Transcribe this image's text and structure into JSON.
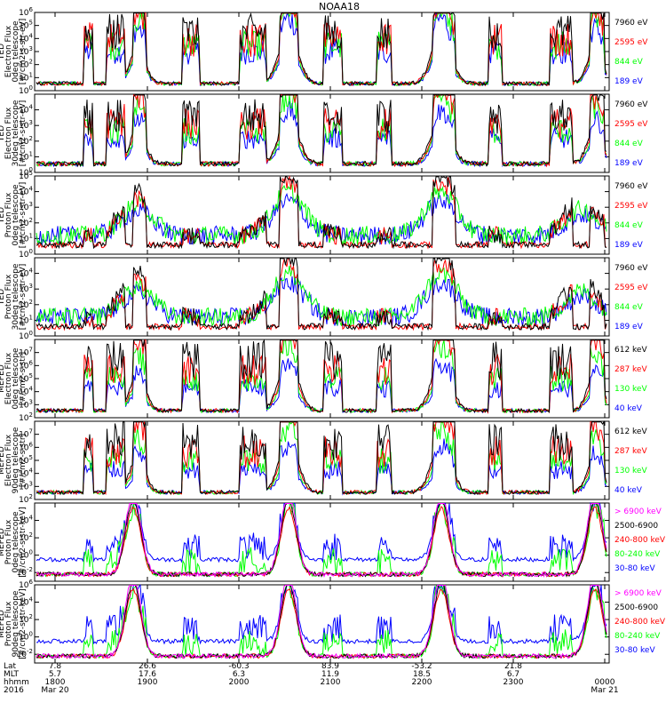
{
  "title": "NOAA18",
  "colors": {
    "black": "#000000",
    "red": "#ff0000",
    "green": "#00ff00",
    "blue": "#0000ff",
    "magenta": "#ff00ff"
  },
  "footer": {
    "row_labels": [
      "Lat",
      "MLT",
      "hhmm",
      "2016"
    ],
    "lat": [
      "7.8",
      "26.6",
      "-60.3",
      "83.9",
      "-53.2",
      "21.8"
    ],
    "mlt": [
      "5.7",
      "17.6",
      "6.3",
      "11.9",
      "18.5",
      "6.7"
    ],
    "hhmm": [
      "1800",
      "1900",
      "2000",
      "2100",
      "2200",
      "2300",
      "0000"
    ],
    "date_start": "Mar 20",
    "date_end": "Mar 21"
  },
  "chart_data": [
    {
      "type": "line",
      "panel": "TED Electron Flux 0deg telescope",
      "ylabel": [
        "TED",
        "Electron Flux",
        "0deg telescope",
        "[#/cm2-s-str-eV]"
      ],
      "ylim_log10": [
        0,
        6
      ],
      "y_ticks_exp": [
        0,
        1,
        2,
        3,
        4,
        5,
        6
      ],
      "yscale": "log",
      "x": [
        "1800",
        "1900",
        "2000",
        "2100",
        "2200",
        "2300",
        "0000"
      ],
      "series": [
        {
          "name": "7960 eV",
          "color": "#000000"
        },
        {
          "name": "2595 eV",
          "color": "#ff0000"
        },
        {
          "name": "844 eV",
          "color": "#00ff00"
        },
        {
          "name": "189 eV",
          "color": "#0000ff"
        }
      ]
    },
    {
      "type": "line",
      "panel": "TED Electron Flux 30deg telescope",
      "ylabel": [
        "TED",
        "Electron Flux",
        "30deg telescope",
        "[#/cm2-s-str-eV]"
      ],
      "ylim_log10": [
        0,
        5
      ],
      "y_ticks_exp": [
        0,
        1,
        2,
        3,
        4
      ],
      "yscale": "log",
      "x": [
        "1800",
        "1900",
        "2000",
        "2100",
        "2200",
        "2300",
        "0000"
      ],
      "series": [
        {
          "name": "7960 eV",
          "color": "#000000"
        },
        {
          "name": "2595 eV",
          "color": "#ff0000"
        },
        {
          "name": "844 eV",
          "color": "#00ff00"
        },
        {
          "name": "189 eV",
          "color": "#0000ff"
        }
      ]
    },
    {
      "type": "line",
      "panel": "TED Proton Flux 0deg telescope",
      "ylabel": [
        "TED",
        "Proton Flux",
        "0deg telescope",
        "[#/cm2-s-str-eV]"
      ],
      "ylim_log10": [
        0,
        5
      ],
      "y_ticks_exp": [
        0,
        1,
        2,
        3,
        4,
        5
      ],
      "yscale": "log",
      "x": [
        "1800",
        "1900",
        "2000",
        "2100",
        "2200",
        "2300",
        "0000"
      ],
      "series": [
        {
          "name": "7960 eV",
          "color": "#000000"
        },
        {
          "name": "2595 eV",
          "color": "#ff0000"
        },
        {
          "name": "844 eV",
          "color": "#00ff00"
        },
        {
          "name": "189 eV",
          "color": "#0000ff"
        }
      ]
    },
    {
      "type": "line",
      "panel": "TED Proton Flux 30deg telescope",
      "ylabel": [
        "TED",
        "Proton Flux",
        "30deg telescope",
        "[#/cm2-s-str-eV]"
      ],
      "ylim_log10": [
        0,
        5
      ],
      "y_ticks_exp": [
        0,
        1,
        2,
        3,
        4
      ],
      "yscale": "log",
      "x": [
        "1800",
        "1900",
        "2000",
        "2100",
        "2200",
        "2300",
        "0000"
      ],
      "series": [
        {
          "name": "7960 eV",
          "color": "#000000"
        },
        {
          "name": "2595 eV",
          "color": "#ff0000"
        },
        {
          "name": "844 eV",
          "color": "#00ff00"
        },
        {
          "name": "189 eV",
          "color": "#0000ff"
        }
      ]
    },
    {
      "type": "line",
      "panel": "MEPED Electron Flux 0deg telescope",
      "ylabel": [
        "MEPED",
        "Electron Flux",
        "0deg telescope",
        "[#/cm2-s-str]"
      ],
      "ylim_log10": [
        2,
        8
      ],
      "y_ticks_exp": [
        2,
        3,
        4,
        5,
        6,
        7
      ],
      "yscale": "log",
      "x": [
        "1800",
        "1900",
        "2000",
        "2100",
        "2200",
        "2300",
        "0000"
      ],
      "series": [
        {
          "name": "612 keV",
          "color": "#000000"
        },
        {
          "name": "287 keV",
          "color": "#ff0000"
        },
        {
          "name": "130 keV",
          "color": "#00ff00"
        },
        {
          "name": "40 keV",
          "color": "#0000ff"
        }
      ]
    },
    {
      "type": "line",
      "panel": "MEPED Electron Flux 90deg telescope",
      "ylabel": [
        "MEPED",
        "Electron Flux",
        "90deg telescope",
        "[#/cm2-s-str]"
      ],
      "ylim_log10": [
        2,
        8
      ],
      "y_ticks_exp": [
        2,
        3,
        4,
        5,
        6,
        7
      ],
      "yscale": "log",
      "x": [
        "1800",
        "1900",
        "2000",
        "2100",
        "2200",
        "2300",
        "0000"
      ],
      "series": [
        {
          "name": "612 keV",
          "color": "#000000"
        },
        {
          "name": "287 keV",
          "color": "#ff0000"
        },
        {
          "name": "130 keV",
          "color": "#00ff00"
        },
        {
          "name": "40 keV",
          "color": "#0000ff"
        }
      ]
    },
    {
      "type": "line",
      "panel": "MEPED Proton Flux 0deg telescope",
      "ylabel": [
        "MEPED",
        "Proton Flux",
        "0deg telescope",
        "[#/cm2-s-str-keV]"
      ],
      "ylim_log10": [
        -3,
        6
      ],
      "y_ticks_exp": [
        -2,
        0,
        2,
        4
      ],
      "yscale": "log",
      "x": [
        "1800",
        "1900",
        "2000",
        "2100",
        "2200",
        "2300",
        "0000"
      ],
      "series": [
        {
          "name": "> 6900 keV",
          "color": "#ff00ff"
        },
        {
          "name": "2500-6900",
          "color": "#000000"
        },
        {
          "name": "240-800 keV",
          "color": "#ff0000"
        },
        {
          "name": "80-240 keV",
          "color": "#00ff00"
        },
        {
          "name": "30-80 keV",
          "color": "#0000ff"
        }
      ]
    },
    {
      "type": "line",
      "panel": "MEPED Proton Flux 90deg telescope",
      "ylabel": [
        "MEPED",
        "Proton Flux",
        "90deg telescope",
        "[#/cm2-s-str-keV]"
      ],
      "ylim_log10": [
        -3,
        6
      ],
      "y_ticks_exp": [
        -2,
        0,
        2,
        4,
        6
      ],
      "yscale": "log",
      "x": [
        "1800",
        "1900",
        "2000",
        "2100",
        "2200",
        "2300",
        "0000"
      ],
      "series": [
        {
          "name": "> 6900 keV",
          "color": "#ff00ff"
        },
        {
          "name": "2500-6900",
          "color": "#000000"
        },
        {
          "name": "240-800 keV",
          "color": "#ff0000"
        },
        {
          "name": "80-240 keV",
          "color": "#00ff00"
        },
        {
          "name": "30-80 keV",
          "color": "#0000ff"
        }
      ]
    }
  ]
}
